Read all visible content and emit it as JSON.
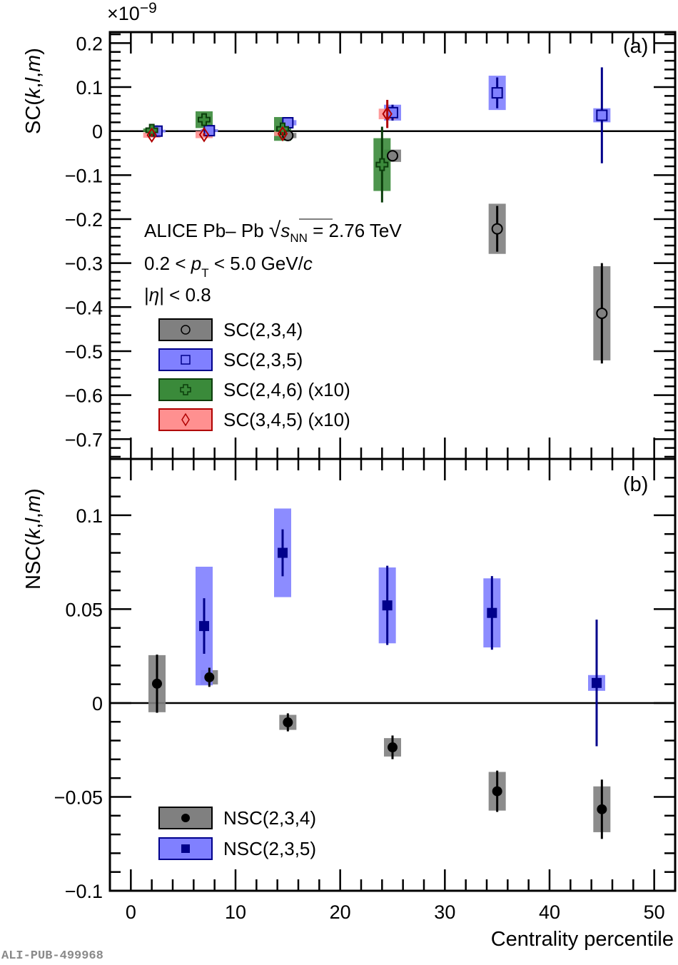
{
  "chart_data": [
    {
      "type": "scatter",
      "panel_label": "(a)",
      "ylabel": "SC(k,l,m)",
      "ylabel_parts": {
        "prefix": "SC(",
        "k": "k",
        "sep1": ",",
        "l": "l",
        "sep2": ",",
        "m": "m",
        "suffix": ")"
      },
      "y_multiplier": "×10",
      "y_multiplier_exp": "−9",
      "xlim": [
        -2,
        52
      ],
      "ylim": [
        -0.745,
        0.225
      ],
      "yticks": [
        0.2,
        0.1,
        0,
        -0.1,
        -0.2,
        -0.3,
        -0.4,
        -0.5,
        -0.6,
        -0.7
      ],
      "ytick_labels": [
        "0.2",
        "0.1",
        "0",
        "−0.1",
        "−0.2",
        "−0.3",
        "−0.4",
        "−0.5",
        "−0.6",
        "−0.7"
      ],
      "annotations": {
        "line1": {
          "text": "ALICE Pb– Pb ",
          "sqrt_s": "s",
          "sub": "NN",
          "rest": " = 2.76 TeV"
        },
        "line2": {
          "pre": "0.2 < ",
          "p": "p",
          "sub": "T",
          "post": " < 5.0 GeV/",
          "c": "c"
        },
        "line3": {
          "pre": "|",
          "eta": "η",
          "post": "| < 0.8"
        }
      },
      "series": [
        {
          "name": "SC(2,3,4)",
          "marker": "open-circle",
          "color": "#000000",
          "box_color": "#808080",
          "x": [
            2.5,
            7.5,
            15,
            25,
            35,
            45
          ],
          "y": [
            0.0,
            0.001,
            -0.01,
            -0.056,
            -0.222,
            -0.414
          ],
          "stat": [
            0.003,
            0.003,
            0.006,
            0.01,
            0.052,
            0.114
          ],
          "sys": [
            0.003,
            0.003,
            0.006,
            0.014,
            0.057,
            0.107
          ]
        },
        {
          "name": "SC(2,3,5)",
          "marker": "open-square",
          "color": "#00008b",
          "box_color": "#8080ff",
          "x": [
            2.5,
            7.5,
            15,
            25,
            35,
            45
          ],
          "y": [
            0.0,
            0.001,
            0.019,
            0.042,
            0.087,
            0.036
          ],
          "stat": [
            0.002,
            0.002,
            0.004,
            0.018,
            0.035,
            0.109
          ],
          "sys": [
            0.003,
            0.003,
            0.006,
            0.018,
            0.039,
            0.016
          ]
        },
        {
          "name": "SC(2,4,6) (x10)",
          "marker": "open-cross",
          "color": "#0b3d0b",
          "box_color": "#3a8a3a",
          "x": [
            2.0,
            7.0,
            14.5,
            24.0
          ],
          "y": [
            0.002,
            0.026,
            0.005,
            -0.076
          ],
          "stat": [
            0.003,
            0.008,
            0.01,
            0.086
          ],
          "sys": [
            0.004,
            0.019,
            0.027,
            0.06
          ]
        },
        {
          "name": "SC(3,4,5) (x10)",
          "marker": "open-diamond",
          "color": "#b00000",
          "box_color": "#ff9090",
          "x": [
            2.0,
            7.0,
            14.5,
            24.5
          ],
          "y": [
            -0.009,
            -0.008,
            -0.006,
            0.039
          ],
          "stat": [
            0.003,
            0.003,
            0.004,
            0.032
          ],
          "sys": [
            0.006,
            0.008,
            0.005,
            0.012
          ]
        }
      ]
    },
    {
      "type": "scatter",
      "panel_label": "(b)",
      "ylabel": "NSC(k,l,m)",
      "ylabel_parts": {
        "prefix": "NSC(",
        "k": "k",
        "sep1": ",",
        "l": "l",
        "sep2": ",",
        "m": "m",
        "suffix": ")"
      },
      "xlabel": "Centrality percentile",
      "xlim": [
        -2,
        52
      ],
      "ylim": [
        -0.1,
        0.13
      ],
      "xticks": [
        0,
        10,
        20,
        30,
        40,
        50
      ],
      "xtick_labels": [
        "0",
        "10",
        "20",
        "30",
        "40",
        "50"
      ],
      "yticks": [
        0.1,
        0.05,
        0,
        -0.05,
        -0.1
      ],
      "ytick_labels": [
        "0.1",
        "0.05",
        "0",
        "−0.05",
        "−0.1"
      ],
      "series": [
        {
          "name": "NSC(2,3,4)",
          "marker": "filled-circle",
          "color": "#000000",
          "box_color": "#808080",
          "x": [
            2.5,
            7.5,
            15,
            25,
            35,
            45
          ],
          "y": [
            0.0103,
            0.0137,
            -0.0103,
            -0.0236,
            -0.047,
            -0.0566
          ],
          "stat": [
            0.0155,
            0.0051,
            0.0048,
            0.0063,
            0.011,
            0.0158
          ],
          "sys": [
            0.0152,
            0.0038,
            0.004,
            0.0049,
            0.0103,
            0.0122
          ]
        },
        {
          "name": "NSC(2,3,5)",
          "marker": "filled-square",
          "color": "#00008b",
          "box_color": "#8080ff",
          "x": [
            7,
            14.5,
            24.5,
            34.5,
            44.5
          ],
          "y": [
            0.041,
            0.08,
            0.052,
            0.048,
            0.0107
          ],
          "stat": [
            0.0148,
            0.0125,
            0.0211,
            0.0196,
            0.0337
          ],
          "sys": [
            0.0316,
            0.0236,
            0.0202,
            0.0184,
            0.0042
          ]
        }
      ]
    }
  ],
  "watermark": "ALI-PUB-499968"
}
